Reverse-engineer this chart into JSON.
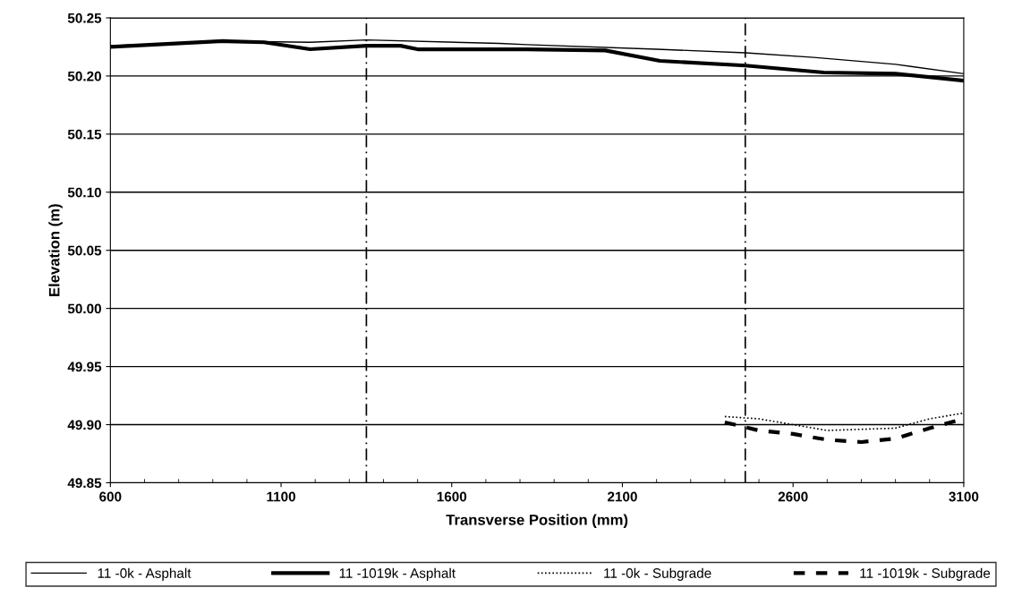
{
  "chart_data": {
    "type": "line",
    "xlabel": "Transverse Position (mm)",
    "ylabel": "Elevation (m)",
    "xlim": [
      600,
      3100
    ],
    "xticks": [
      600,
      1100,
      1600,
      2100,
      2600,
      3100
    ],
    "ylim": [
      49.85,
      50.25
    ],
    "yticks": [
      {
        "value": 49.85,
        "label": "49.85"
      },
      {
        "value": 49.9,
        "label": "49.90"
      },
      {
        "value": 49.95,
        "label": "49.95"
      },
      {
        "value": 50.0,
        "label": "50.00"
      },
      {
        "value": 50.05,
        "label": "50.05"
      },
      {
        "value": 50.1,
        "label": "50.10"
      },
      {
        "value": 50.15,
        "label": "50.15"
      },
      {
        "value": 50.2,
        "label": "50.20"
      },
      {
        "value": 50.25,
        "label": "50.25"
      }
    ],
    "grid": "y",
    "legend": "bottom",
    "marker": "none",
    "ref_lines": [
      {
        "axis": "x",
        "value": 1350,
        "color": "#000000",
        "line_style": "dashdot"
      },
      {
        "axis": "x",
        "value": 2460,
        "color": "#000000",
        "line_style": "dashdot"
      }
    ],
    "series": [
      {
        "name": "11 -0k - Asphalt",
        "color": "#000000",
        "line_style": "solid",
        "x": [
          600,
          930,
          1185,
          1350,
          1740,
          1820,
          2200,
          2460,
          2660,
          2900,
          3100
        ],
        "values": [
          50.226,
          50.23,
          50.229,
          50.231,
          50.228,
          50.227,
          50.223,
          50.22,
          50.216,
          50.21,
          50.202
        ]
      },
      {
        "name": "11 -1019k - Asphalt",
        "color": "#000000",
        "line_style": "solid",
        "x": [
          600,
          930,
          1050,
          1185,
          1350,
          1450,
          1500,
          1820,
          2050,
          2210,
          2460,
          2690,
          2900,
          3100
        ],
        "values": [
          50.225,
          50.23,
          50.229,
          50.223,
          50.226,
          50.226,
          50.223,
          50.223,
          50.222,
          50.213,
          50.209,
          50.203,
          50.202,
          50.196
        ]
      },
      {
        "name": "11 -0k - Subgrade",
        "color": "#000000",
        "line_style": "dotted",
        "x": [
          2400,
          2500,
          2600,
          2700,
          2800,
          2900,
          3000,
          3100
        ],
        "values": [
          49.907,
          49.905,
          49.9,
          49.895,
          49.896,
          49.897,
          49.905,
          49.91
        ]
      },
      {
        "name": "11 -1019k - Subgrade",
        "color": "#000000",
        "line_style": "dashed",
        "x": [
          2400,
          2500,
          2600,
          2700,
          2800,
          2900,
          3000,
          3100
        ],
        "values": [
          49.902,
          49.895,
          49.892,
          49.887,
          49.885,
          49.888,
          49.897,
          49.905
        ]
      }
    ]
  }
}
